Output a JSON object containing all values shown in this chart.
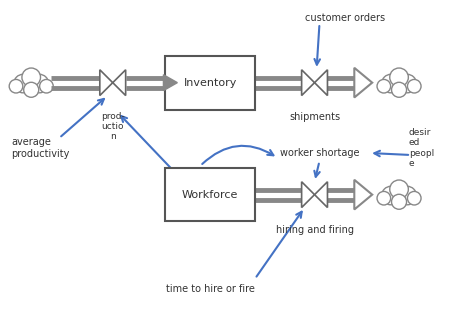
{
  "bg_color": "#ffffff",
  "flow_color": "#888888",
  "arrow_color": "#4472c4",
  "box_color": "#ffffff",
  "box_edge": "#555555",
  "text_color": "#333333",
  "inventory_label": "Inventory",
  "workforce_label": "Workforce",
  "labels": {
    "production": "prod-\nuctio\nn",
    "shipments": "shipments",
    "customer_orders": "customer orders",
    "average_productivity": "average\nproductivity",
    "worker_shortage": "worker shortage",
    "desired_people": "desir\ned\npeopl\ne",
    "hiring_and_firing": "hiring and firing",
    "time_to_hire": "time to hire or fire"
  }
}
